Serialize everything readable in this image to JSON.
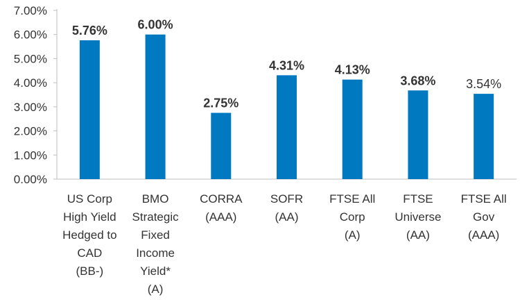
{
  "chart_data": {
    "type": "bar",
    "title": "",
    "xlabel": "",
    "ylabel": "",
    "ylim": [
      0,
      7
    ],
    "y_ticks": [
      "0.00%",
      "1.00%",
      "2.00%",
      "3.00%",
      "4.00%",
      "5.00%",
      "6.00%",
      "7.00%"
    ],
    "categories": [
      [
        "US Corp",
        "High Yield",
        "Hedged to",
        "CAD",
        "(BB-)"
      ],
      [
        "BMO",
        "Strategic",
        "Fixed",
        "Income",
        "Yield*",
        "(A)"
      ],
      [
        "CORRA",
        "(AAA)"
      ],
      [
        "SOFR",
        "(AA)"
      ],
      [
        "FTSE All",
        "Corp",
        "(A)"
      ],
      [
        "FTSE",
        "Universe",
        "(AA)"
      ],
      [
        "FTSE All",
        "Gov",
        "(AAA)"
      ]
    ],
    "values": [
      5.76,
      6.0,
      2.75,
      4.31,
      4.13,
      3.68,
      3.54
    ],
    "data_labels": [
      "5.76%",
      "6.00%",
      "2.75%",
      "4.31%",
      "4.13%",
      "3.68%",
      "3.54%"
    ],
    "highlight_index": 1,
    "grid": false,
    "legend": "none"
  },
  "colors": {
    "bar": "#0079C1",
    "highlight_label": "#F28B1E",
    "text": "#333333",
    "axis": "#BFBFBF"
  }
}
